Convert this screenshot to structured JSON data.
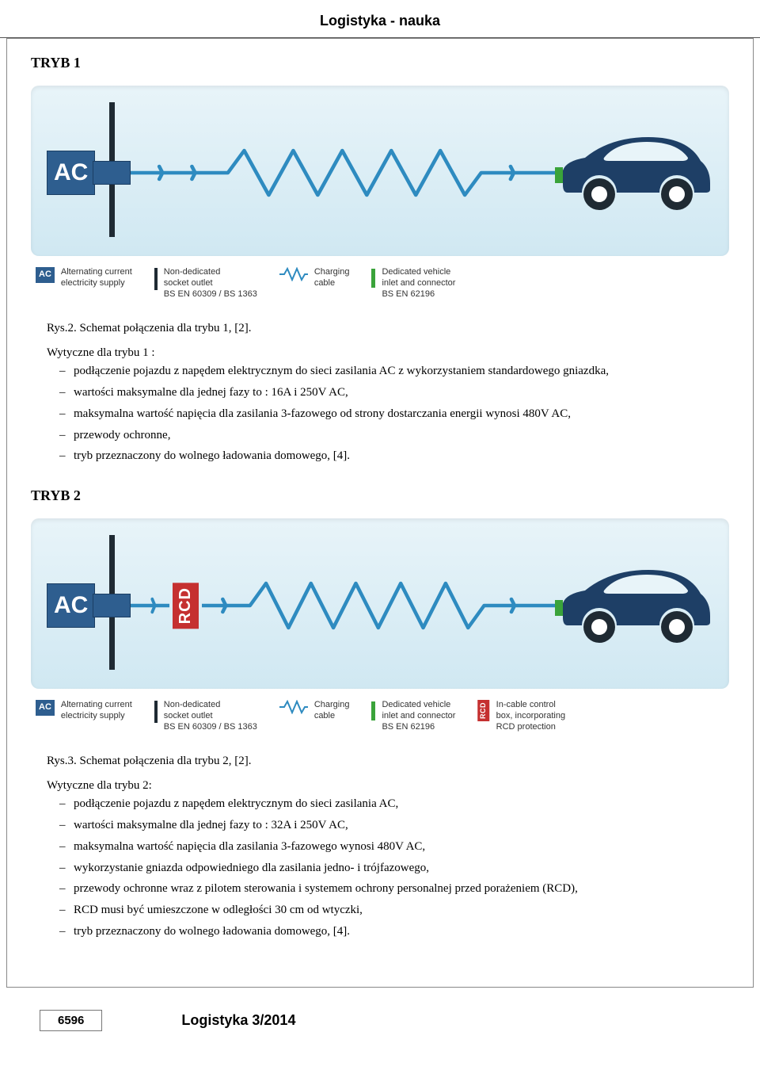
{
  "header": "Logistyka - nauka",
  "footer": {
    "page": "6596",
    "journal": "Logistyka 3/2014"
  },
  "colors": {
    "ac_blue": "#2e5e8f",
    "car_blue": "#1e3f66",
    "cable_blue": "#2e8bc0",
    "green": "#3aa33a",
    "rcd_red": "#c53030",
    "dark": "#1f2a33",
    "bg_grad_top": "#e8f4f9",
    "bg_grad_bottom": "#d0e8f2"
  },
  "mode1": {
    "title": "TRYB 1",
    "ac_label": "AC",
    "caption": "Rys.2. Schemat połączenia dla trybu 1, [2].",
    "intro": "Wytyczne dla trybu 1 :",
    "bullets": [
      "podłączenie pojazdu z napędem elektrycznym do sieci zasilania AC z wykorzystaniem standardowego gniazdka,",
      "wartości maksymalne dla jednej fazy to : 16A i 250V AC,",
      "maksymalna wartość napięcia dla zasilania 3-fazowego od strony dostarczania energii wynosi 480V AC,",
      "przewody ochronne,",
      "tryb przeznaczony do wolnego ładowania domowego, [4]."
    ],
    "legend": [
      {
        "icon": "ac",
        "label": "AC",
        "text": "Alternating current\nelectricity supply"
      },
      {
        "icon": "bar",
        "text": "Non-dedicated\nsocket outlet\nBS EN 60309 / BS 1363"
      },
      {
        "icon": "cable",
        "text": "Charging\ncable"
      },
      {
        "icon": "green",
        "text": "Dedicated vehicle\ninlet and connector\nBS EN 62196"
      }
    ]
  },
  "mode2": {
    "title": "TRYB 2",
    "ac_label": "AC",
    "rcd_label": "RCD",
    "caption": "Rys.3. Schemat połączenia dla trybu 2, [2].",
    "intro": "Wytyczne dla trybu 2:",
    "bullets": [
      "podłączenie pojazdu z napędem elektrycznym do sieci zasilania AC,",
      "wartości maksymalne dla jednej fazy to : 32A i 250V AC,",
      "maksymalna wartość napięcia dla zasilania 3-fazowego wynosi 480V AC,",
      "wykorzystanie gniazda odpowiedniego dla zasilania jedno- i trójfazowego,",
      "przewody ochronne wraz z pilotem sterowania i systemem ochrony personalnej przed porażeniem (RCD),",
      "RCD musi być umieszczone w odległości 30 cm od wtyczki,",
      "tryb przeznaczony do wolnego ładowania domowego, [4]."
    ],
    "legend": [
      {
        "icon": "ac",
        "label": "AC",
        "text": "Alternating current\nelectricity supply"
      },
      {
        "icon": "bar",
        "text": "Non-dedicated\nsocket outlet\nBS EN 60309 / BS 1363"
      },
      {
        "icon": "cable",
        "text": "Charging\ncable"
      },
      {
        "icon": "green",
        "text": "Dedicated vehicle\ninlet and connector\nBS EN 62196"
      },
      {
        "icon": "rcd",
        "label": "RCD",
        "text": "In-cable control\nbox, incorporating\nRCD protection"
      }
    ]
  }
}
